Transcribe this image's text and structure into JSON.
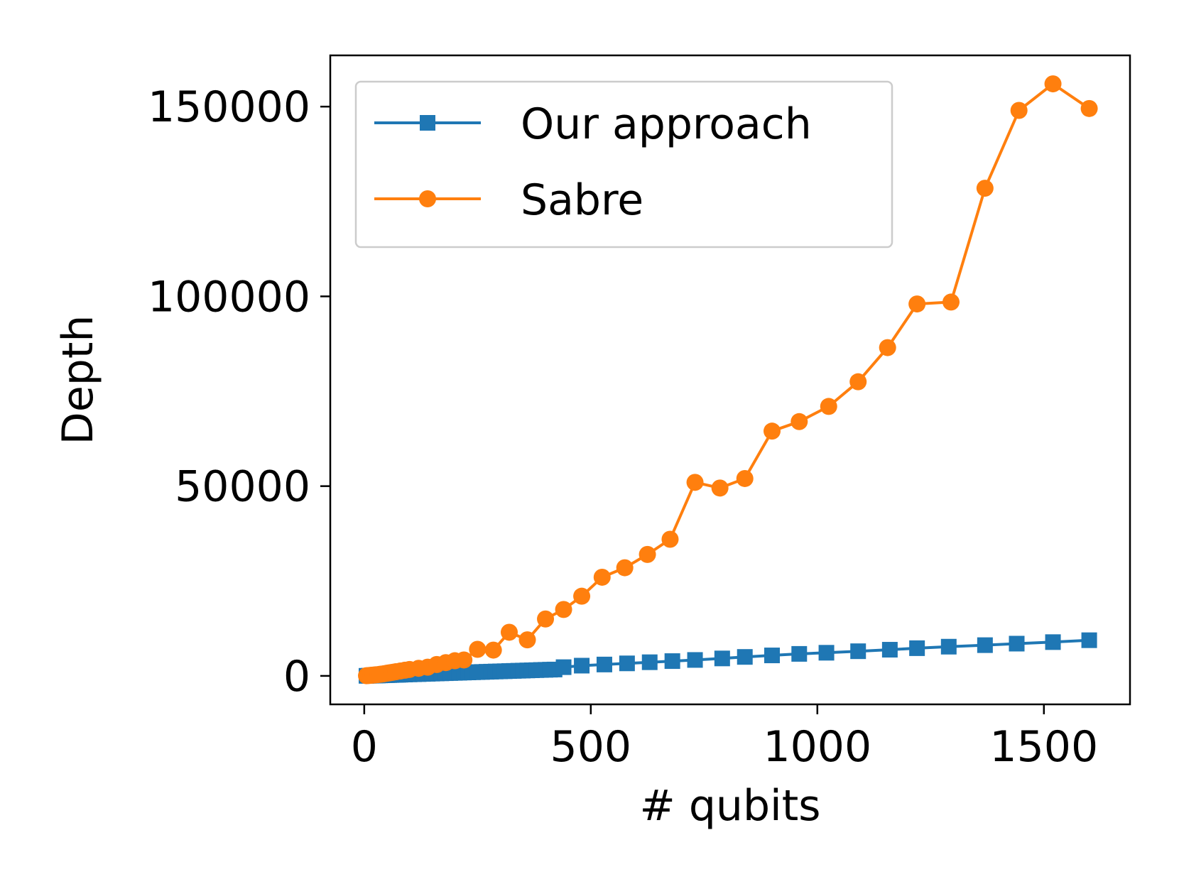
{
  "chart_data": {
    "type": "line",
    "title": "",
    "xlabel": "# qubits",
    "ylabel": "Depth",
    "xlim": [
      -75,
      1690
    ],
    "ylim": [
      -7500,
      163500
    ],
    "xticks": [
      0,
      500,
      1000,
      1500
    ],
    "yticks": [
      0,
      50000,
      100000,
      150000
    ],
    "grid": false,
    "legend_position": "top-left",
    "series": [
      {
        "name": "Our approach",
        "color": "#1f77b4",
        "marker": "square",
        "x": [
          5,
          10,
          15,
          20,
          25,
          30,
          35,
          40,
          45,
          50,
          55,
          60,
          65,
          70,
          75,
          80,
          90,
          100,
          110,
          120,
          130,
          140,
          150,
          160,
          170,
          180,
          190,
          200,
          210,
          220,
          230,
          240,
          250,
          260,
          270,
          280,
          290,
          300,
          310,
          320,
          330,
          340,
          350,
          360,
          370,
          380,
          390,
          400,
          410,
          420,
          440,
          480,
          530,
          580,
          630,
          680,
          730,
          790,
          840,
          900,
          960,
          1020,
          1090,
          1160,
          1220,
          1290,
          1370,
          1440,
          1520,
          1600
        ],
        "y": [
          20,
          40,
          60,
          80,
          100,
          120,
          140,
          160,
          180,
          200,
          220,
          240,
          260,
          280,
          300,
          320,
          360,
          400,
          440,
          480,
          520,
          560,
          600,
          640,
          680,
          720,
          760,
          800,
          840,
          880,
          920,
          960,
          1000,
          1040,
          1080,
          1120,
          1160,
          1200,
          1240,
          1280,
          1320,
          1360,
          1400,
          1440,
          1480,
          1520,
          1560,
          1600,
          1640,
          1680,
          2300,
          2700,
          3000,
          3300,
          3600,
          3900,
          4200,
          4600,
          5000,
          5400,
          5800,
          6100,
          6500,
          6900,
          7300,
          7700,
          8100,
          8500,
          8900,
          9400
        ]
      },
      {
        "name": "Sabre",
        "color": "#ff7f0e",
        "marker": "circle",
        "x": [
          5,
          10,
          15,
          20,
          25,
          30,
          35,
          40,
          45,
          50,
          55,
          60,
          65,
          70,
          80,
          90,
          100,
          120,
          140,
          160,
          180,
          200,
          220,
          250,
          285,
          320,
          360,
          400,
          440,
          480,
          525,
          575,
          625,
          675,
          730,
          785,
          840,
          900,
          960,
          1025,
          1090,
          1155,
          1220,
          1295,
          1370,
          1445,
          1520,
          1600
        ],
        "y": [
          50,
          100,
          160,
          220,
          280,
          340,
          420,
          500,
          600,
          700,
          800,
          900,
          1000,
          1100,
          1300,
          1500,
          1700,
          2000,
          2300,
          3000,
          3500,
          4000,
          4200,
          7000,
          6800,
          11500,
          9500,
          15000,
          17500,
          21000,
          26000,
          28500,
          32000,
          36000,
          51000,
          49500,
          52000,
          64500,
          67000,
          71000,
          77500,
          86500,
          98000,
          98500,
          128500,
          149000,
          156000,
          149500
        ]
      }
    ]
  }
}
